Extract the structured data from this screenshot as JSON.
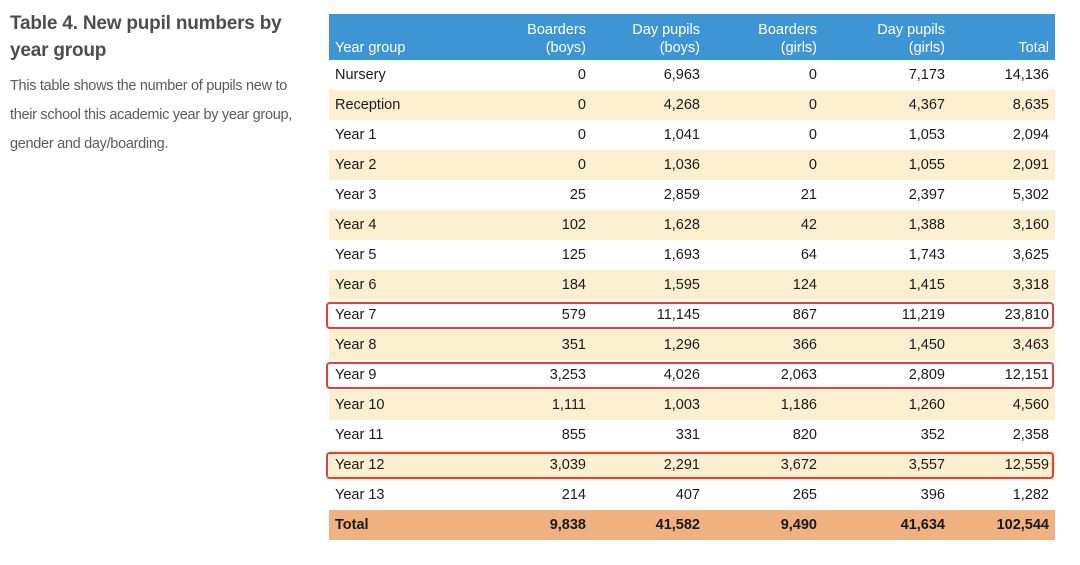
{
  "caption": {
    "title": "Table 4. New pupil numbers by year group",
    "description": "This table shows the number of pupils new to their school this academic year by year group, gender and day/boarding."
  },
  "table": {
    "headers": {
      "year_group": "Year group",
      "boarders_boys_1": "Boarders",
      "boarders_boys_2": "(boys)",
      "day_boys_1": "Day pupils",
      "day_boys_2": "(boys)",
      "boarders_girls_1": "Boarders",
      "boarders_girls_2": "(girls)",
      "day_girls_1": "Day pupils",
      "day_girls_2": "(girls)",
      "total": "Total"
    },
    "rows": [
      {
        "year": "Nursery",
        "bb": "0",
        "db": "6,963",
        "bg": "0",
        "dg": "7,173",
        "total": "14,136"
      },
      {
        "year": "Reception",
        "bb": "0",
        "db": "4,268",
        "bg": "0",
        "dg": "4,367",
        "total": "8,635"
      },
      {
        "year": "Year 1",
        "bb": "0",
        "db": "1,041",
        "bg": "0",
        "dg": "1,053",
        "total": "2,094"
      },
      {
        "year": "Year 2",
        "bb": "0",
        "db": "1,036",
        "bg": "0",
        "dg": "1,055",
        "total": "2,091"
      },
      {
        "year": "Year 3",
        "bb": "25",
        "db": "2,859",
        "bg": "21",
        "dg": "2,397",
        "total": "5,302"
      },
      {
        "year": "Year 4",
        "bb": "102",
        "db": "1,628",
        "bg": "42",
        "dg": "1,388",
        "total": "3,160"
      },
      {
        "year": "Year 5",
        "bb": "125",
        "db": "1,693",
        "bg": "64",
        "dg": "1,743",
        "total": "3,625"
      },
      {
        "year": "Year 6",
        "bb": "184",
        "db": "1,595",
        "bg": "124",
        "dg": "1,415",
        "total": "3,318"
      },
      {
        "year": "Year 7",
        "bb": "579",
        "db": "11,145",
        "bg": "867",
        "dg": "11,219",
        "total": "23,810"
      },
      {
        "year": "Year 8",
        "bb": "351",
        "db": "1,296",
        "bg": "366",
        "dg": "1,450",
        "total": "3,463"
      },
      {
        "year": "Year 9",
        "bb": "3,253",
        "db": "4,026",
        "bg": "2,063",
        "dg": "2,809",
        "total": "12,151"
      },
      {
        "year": "Year 10",
        "bb": "1,111",
        "db": "1,003",
        "bg": "1,186",
        "dg": "1,260",
        "total": "4,560"
      },
      {
        "year": "Year 11",
        "bb": "855",
        "db": "331",
        "bg": "820",
        "dg": "352",
        "total": "2,358"
      },
      {
        "year": "Year 12",
        "bb": "3,039",
        "db": "2,291",
        "bg": "3,672",
        "dg": "3,557",
        "total": "12,559"
      },
      {
        "year": "Year 13",
        "bb": "214",
        "db": "407",
        "bg": "265",
        "dg": "396",
        "total": "1,282"
      }
    ],
    "total_row": {
      "year": "Total",
      "bb": "9,838",
      "db": "41,582",
      "bg": "9,490",
      "dg": "41,634",
      "total": "102,544"
    },
    "highlighted_rows": [
      "Year 7",
      "Year 9",
      "Year 12"
    ]
  },
  "colors": {
    "header_bg": "#3d95d3",
    "stripe_bg": "#fbefd0",
    "total_bg": "#efb17f",
    "highlight_border": "#e0413a"
  }
}
